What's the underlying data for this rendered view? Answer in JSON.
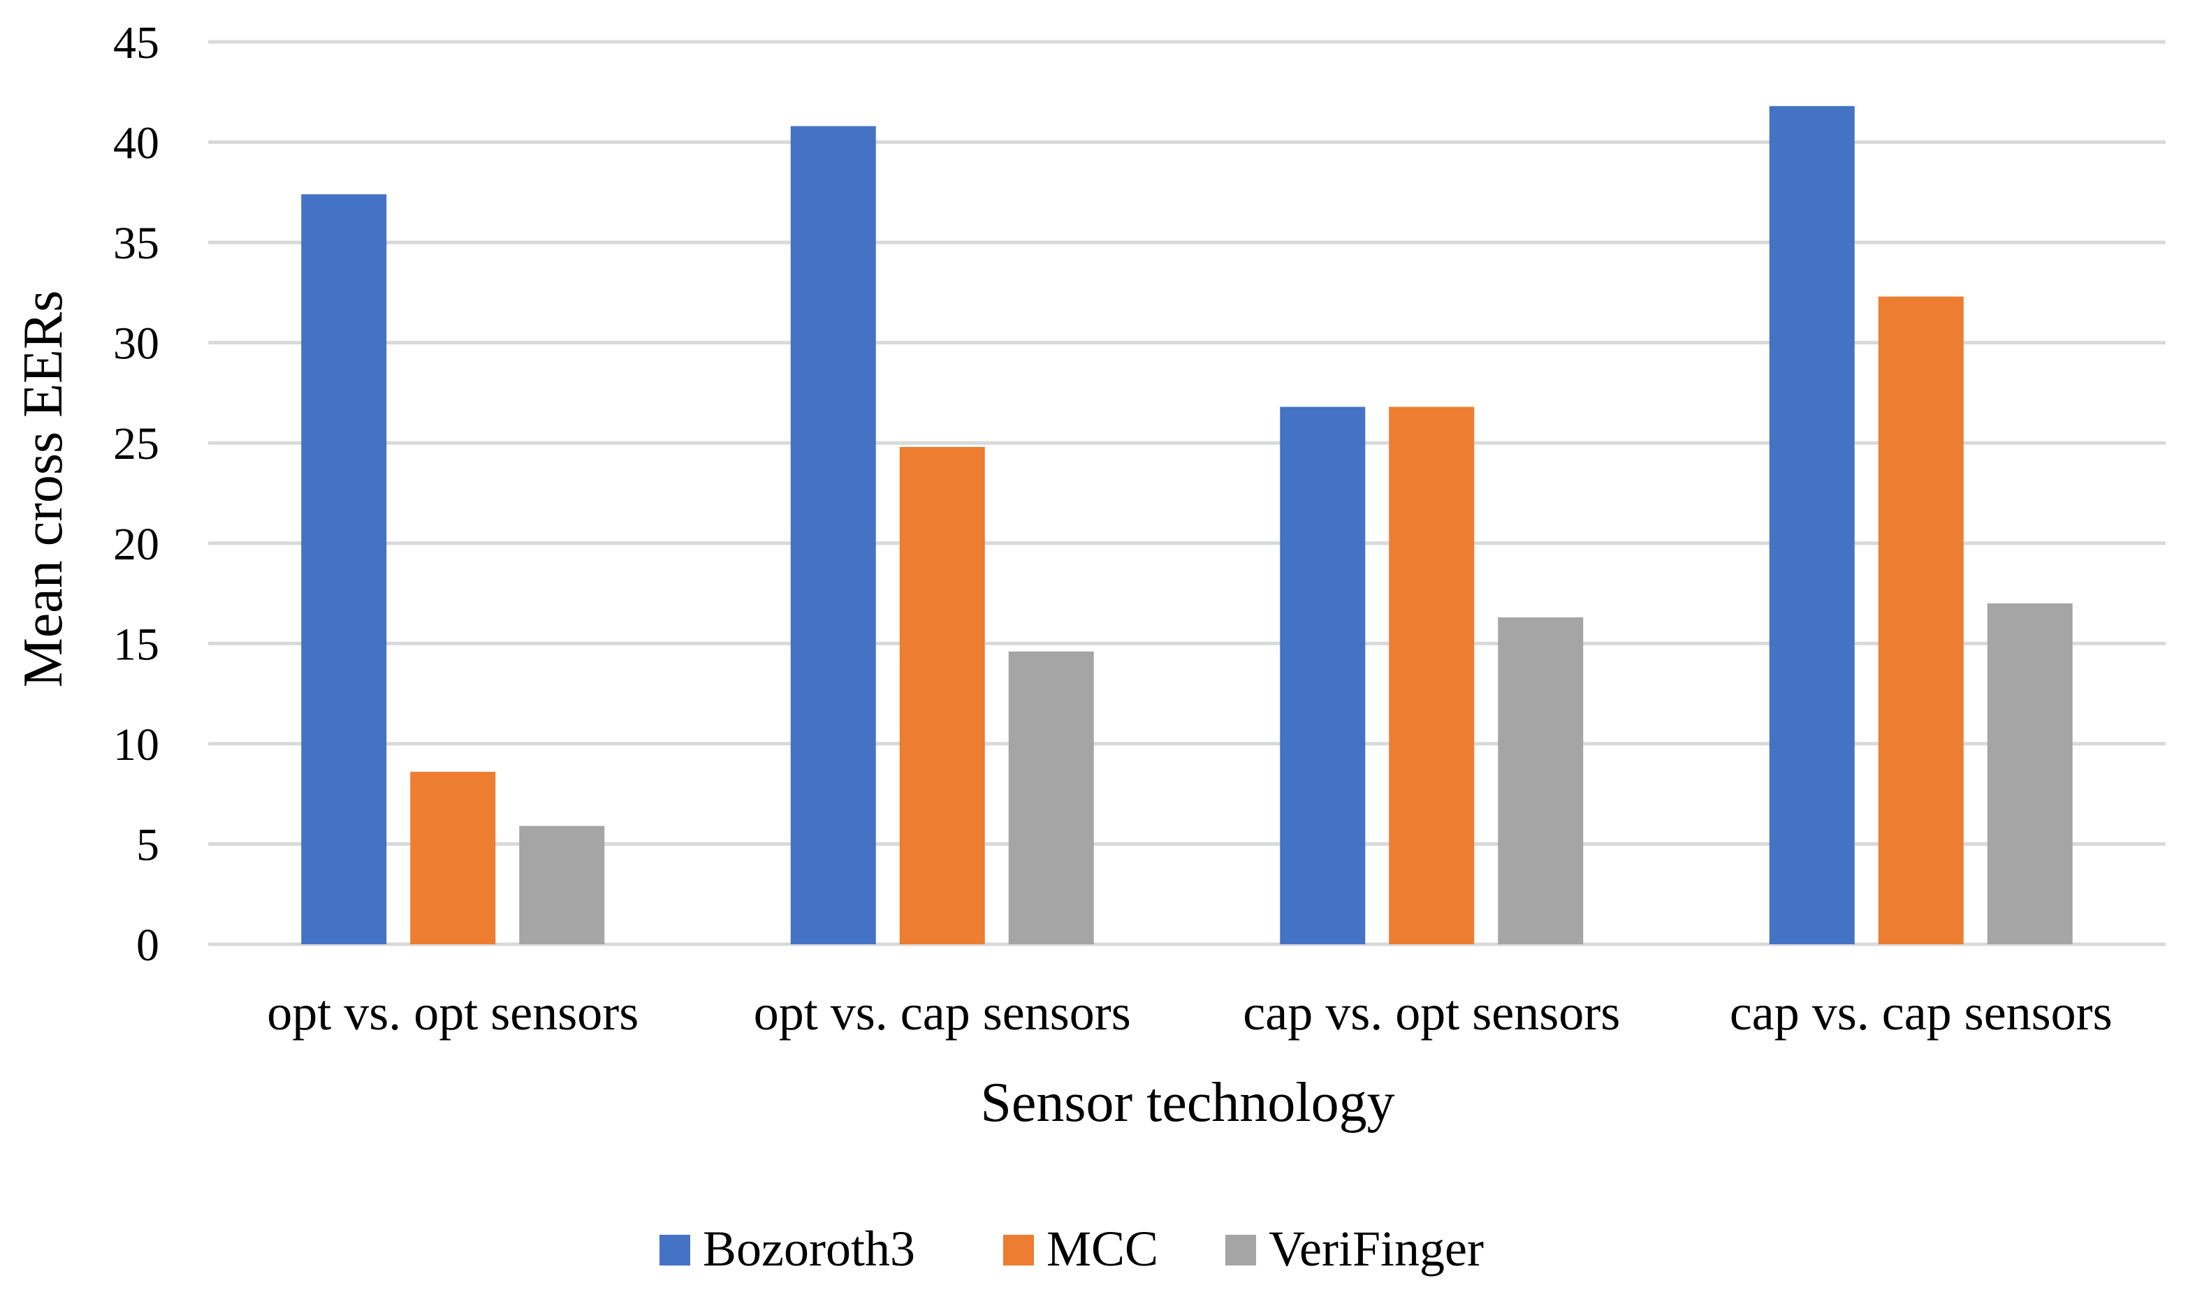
{
  "chart_data": {
    "type": "bar",
    "title": "",
    "xlabel": "Sensor technology",
    "ylabel": "Mean cross EERs",
    "ylim": [
      0,
      45
    ],
    "yticks": [
      0,
      5,
      10,
      15,
      20,
      25,
      30,
      35,
      40,
      45
    ],
    "grid": true,
    "legend_position": "bottom",
    "categories": [
      "opt vs. opt sensors",
      "opt vs. cap sensors",
      "cap vs. opt sensors",
      "cap vs. cap sensors"
    ],
    "series": [
      {
        "name": "Bozoroth3",
        "color": "#4472C4",
        "values": [
          37.4,
          40.8,
          26.8,
          41.8
        ]
      },
      {
        "name": "MCC",
        "color": "#ED7D31",
        "values": [
          8.6,
          24.8,
          26.8,
          32.3
        ]
      },
      {
        "name": "VeriFinger",
        "color": "#A5A5A5",
        "values": [
          5.9,
          14.6,
          16.3,
          17.0
        ]
      }
    ]
  }
}
